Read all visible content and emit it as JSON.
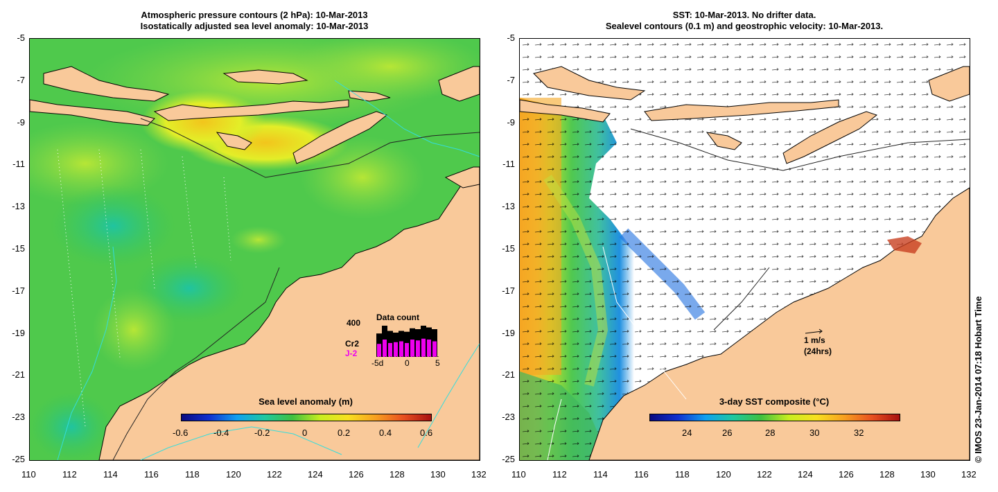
{
  "left_panel": {
    "title_line1": "Atmospheric pressure contours (2 hPa): 10-Mar-2013",
    "title_line2": "Isostatically adjusted sea level anomaly: 10-Mar-2013",
    "colorbar": {
      "label": "Sea level anomaly (m)",
      "ticks": [
        "-0.6",
        "-0.4",
        "-0.2",
        "0",
        "0.2",
        "0.4",
        "0.6"
      ]
    },
    "data_count": {
      "title": "Data count",
      "max_label": "400",
      "series1": "Cr2",
      "series2": "J-2",
      "xticks": [
        "-5d",
        "0",
        "5"
      ],
      "series1_values": [
        270,
        360,
        300,
        280,
        300,
        290,
        330,
        320,
        360,
        340,
        320
      ],
      "series2_values": [
        150,
        200,
        160,
        170,
        180,
        160,
        200,
        190,
        210,
        200,
        180
      ]
    }
  },
  "right_panel": {
    "title_line1": "SST: 10-Mar-2013. No drifter data.",
    "title_line2": "Sealevel contours (0.1 m) and geostrophic velocity: 10-Mar-2013.",
    "colorbar": {
      "label": "3-day SST composite (°C)",
      "ticks": [
        "24",
        "26",
        "28",
        "30",
        "32"
      ]
    },
    "velocity_scale": {
      "line1": "1 m/s",
      "line2": "(24hrs)"
    }
  },
  "axes": {
    "x_ticks": [
      "110",
      "112",
      "114",
      "116",
      "118",
      "120",
      "122",
      "124",
      "126",
      "128",
      "130",
      "132"
    ],
    "y_ticks": [
      "-5",
      "-7",
      "-9",
      "-11",
      "-13",
      "-15",
      "-17",
      "-19",
      "-21",
      "-23",
      "-25"
    ]
  },
  "credit": "© IMOS 23-Jan-2014 07:18 Hobart Time",
  "colors": {
    "land": "#f9c99a",
    "ocean_green": "#4ec94a",
    "ocean_yellow": "#d8f02a",
    "ocean_orange": "#f5a623"
  }
}
